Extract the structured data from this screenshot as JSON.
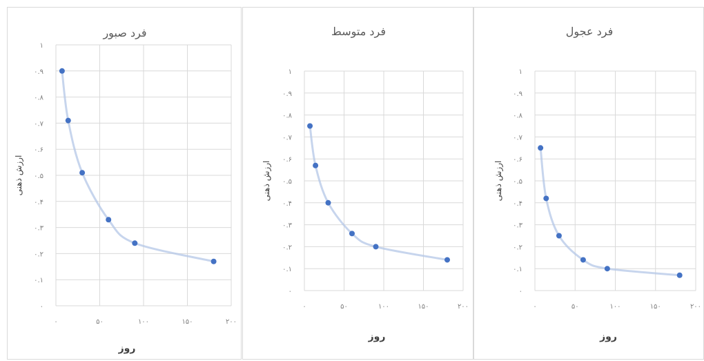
{
  "chart_data": [
    {
      "type": "scatter",
      "title": "فرد صبور",
      "xlabel": "روز",
      "ylabel": "ارزش ذهنی",
      "xlim": [
        0,
        200
      ],
      "ylim": [
        0,
        1
      ],
      "x_ticks": [
        "۰",
        "۵۰",
        "۱۰۰",
        "۱۵۰",
        "۲۰۰"
      ],
      "y_ticks": [
        "۰",
        "۰.۱",
        "۰.۲",
        "۰.۳",
        "۰.۴",
        "۰.۵",
        "۰.۶",
        "۰.۷",
        "۰.۸",
        "۰.۹",
        "۱"
      ],
      "x": [
        7,
        14,
        30,
        60,
        90,
        180
      ],
      "y": [
        0.9,
        0.71,
        0.51,
        0.33,
        0.24,
        0.17
      ],
      "grid": true,
      "trendline": true
    },
    {
      "type": "scatter",
      "title": "فرد متوسط",
      "xlabel": "روز",
      "ylabel": "ارزش ذهنی",
      "xlim": [
        0,
        200
      ],
      "ylim": [
        0,
        1
      ],
      "x_ticks": [
        "۰",
        "۵۰",
        "۱۰۰",
        "۱۵۰",
        "۲۰۰"
      ],
      "y_ticks": [
        "۰",
        "۰.۱",
        "۰.۲",
        "۰.۳",
        "۰.۴",
        "۰.۵",
        "۰.۶",
        "۰.۷",
        "۰.۸",
        "۰.۹",
        "۱"
      ],
      "x": [
        7,
        14,
        30,
        60,
        90,
        180
      ],
      "y": [
        0.75,
        0.57,
        0.4,
        0.26,
        0.2,
        0.14
      ],
      "grid": true,
      "trendline": true
    },
    {
      "type": "scatter",
      "title": "فرد عجول",
      "xlabel": "روز",
      "ylabel": "ارزش ذهنی",
      "xlim": [
        0,
        200
      ],
      "ylim": [
        0,
        1
      ],
      "x_ticks": [
        "۰",
        "۵۰",
        "۱۰۰",
        "۱۵۰",
        "۲۰۰"
      ],
      "y_ticks": [
        "۰",
        "۰.۱",
        "۰.۲",
        "۰.۳",
        "۰.۴",
        "۰.۵",
        "۰.۶",
        "۰.۷",
        "۰.۸",
        "۰.۹",
        "۱"
      ],
      "x": [
        7,
        14,
        30,
        60,
        90,
        180
      ],
      "y": [
        0.65,
        0.42,
        0.25,
        0.14,
        0.1,
        0.07
      ],
      "grid": true,
      "trendline": true
    }
  ],
  "colors": {
    "points": "#4472c4",
    "trendline": "#b4c7e7",
    "grid": "#d9d9d9",
    "text": "#595959"
  }
}
